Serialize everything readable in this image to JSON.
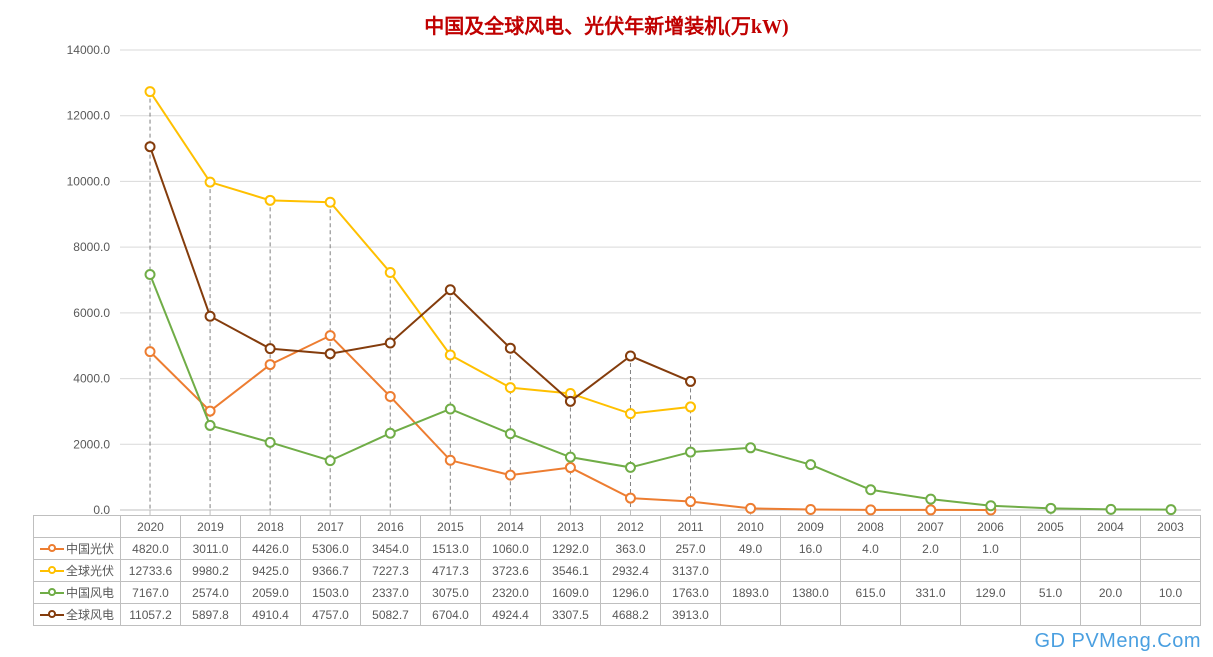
{
  "title": "中国及全球风电、光伏年新增装机(万kW)",
  "watermark": "GD PVMeng.Com",
  "chart": {
    "type": "line",
    "background_color": "#ffffff",
    "grid_color": "#d9d9d9",
    "axis_color": "#bfbfbf",
    "tick_font_size": 12,
    "tick_color": "#595959",
    "ylim": [
      0,
      14000
    ],
    "ytick_step": 2000,
    "yticks": [
      "0.0",
      "2000.0",
      "4000.0",
      "6000.0",
      "8000.0",
      "10000.0",
      "12000.0",
      "14000.0"
    ],
    "categories": [
      "2020",
      "2019",
      "2018",
      "2017",
      "2016",
      "2015",
      "2014",
      "2013",
      "2012",
      "2011",
      "2010",
      "2009",
      "2008",
      "2007",
      "2006",
      "2005",
      "2004",
      "2003"
    ],
    "marker_radius": 4.5,
    "line_width": 2,
    "drop_line_color": "#808080",
    "drop_line_dash": "4,3",
    "series": [
      {
        "id": "cn_pv",
        "label": "中国光伏",
        "color": "#ed7d31",
        "marker_fill": "#ffffff",
        "values": [
          4820.0,
          3011.0,
          4426.0,
          5306.0,
          3454.0,
          1513.0,
          1060.0,
          1292.0,
          363.0,
          257.0,
          49.0,
          16.0,
          4.0,
          2.0,
          1.0,
          null,
          null,
          null
        ],
        "table_values": [
          "4820.0",
          "3011.0",
          "4426.0",
          "5306.0",
          "3454.0",
          "1513.0",
          "1060.0",
          "1292.0",
          "363.0",
          "257.0",
          "49.0",
          "16.0",
          "4.0",
          "2.0",
          "1.0",
          "",
          "",
          ""
        ]
      },
      {
        "id": "global_pv",
        "label": "全球光伏",
        "color": "#ffc000",
        "marker_fill": "#ffffff",
        "values": [
          12733.6,
          9980.2,
          9425.0,
          9366.7,
          7227.3,
          4717.3,
          3723.6,
          3546.1,
          2932.4,
          3137.0,
          null,
          null,
          null,
          null,
          null,
          null,
          null,
          null
        ],
        "table_values": [
          "12733.6",
          "9980.2",
          "9425.0",
          "9366.7",
          "7227.3",
          "4717.3",
          "3723.6",
          "3546.1",
          "2932.4",
          "3137.0",
          "",
          "",
          "",
          "",
          "",
          "",
          "",
          ""
        ]
      },
      {
        "id": "cn_wind",
        "label": "中国风电",
        "color": "#70ad47",
        "marker_fill": "#ffffff",
        "values": [
          7167.0,
          2574.0,
          2059.0,
          1503.0,
          2337.0,
          3075.0,
          2320.0,
          1609.0,
          1296.0,
          1763.0,
          1893.0,
          1380.0,
          615.0,
          331.0,
          129.0,
          51.0,
          20.0,
          10.0
        ],
        "table_values": [
          "7167.0",
          "2574.0",
          "2059.0",
          "1503.0",
          "2337.0",
          "3075.0",
          "2320.0",
          "1609.0",
          "1296.0",
          "1763.0",
          "1893.0",
          "1380.0",
          "615.0",
          "331.0",
          "129.0",
          "51.0",
          "20.0",
          "10.0"
        ]
      },
      {
        "id": "global_wind",
        "label": "全球风电",
        "color": "#843c0c",
        "marker_fill": "#ffffff",
        "values": [
          11057.2,
          5897.8,
          4910.4,
          4757.0,
          5082.7,
          6704.0,
          4924.4,
          3307.5,
          4688.2,
          3913.0,
          null,
          null,
          null,
          null,
          null,
          null,
          null,
          null
        ],
        "table_values": [
          "11057.2",
          "5897.8",
          "4910.4",
          "4757.0",
          "5082.7",
          "6704.0",
          "4924.4",
          "3307.5",
          "4688.2",
          "3913.0",
          "",
          "",
          "",
          "",
          "",
          "",
          "",
          ""
        ]
      }
    ]
  }
}
